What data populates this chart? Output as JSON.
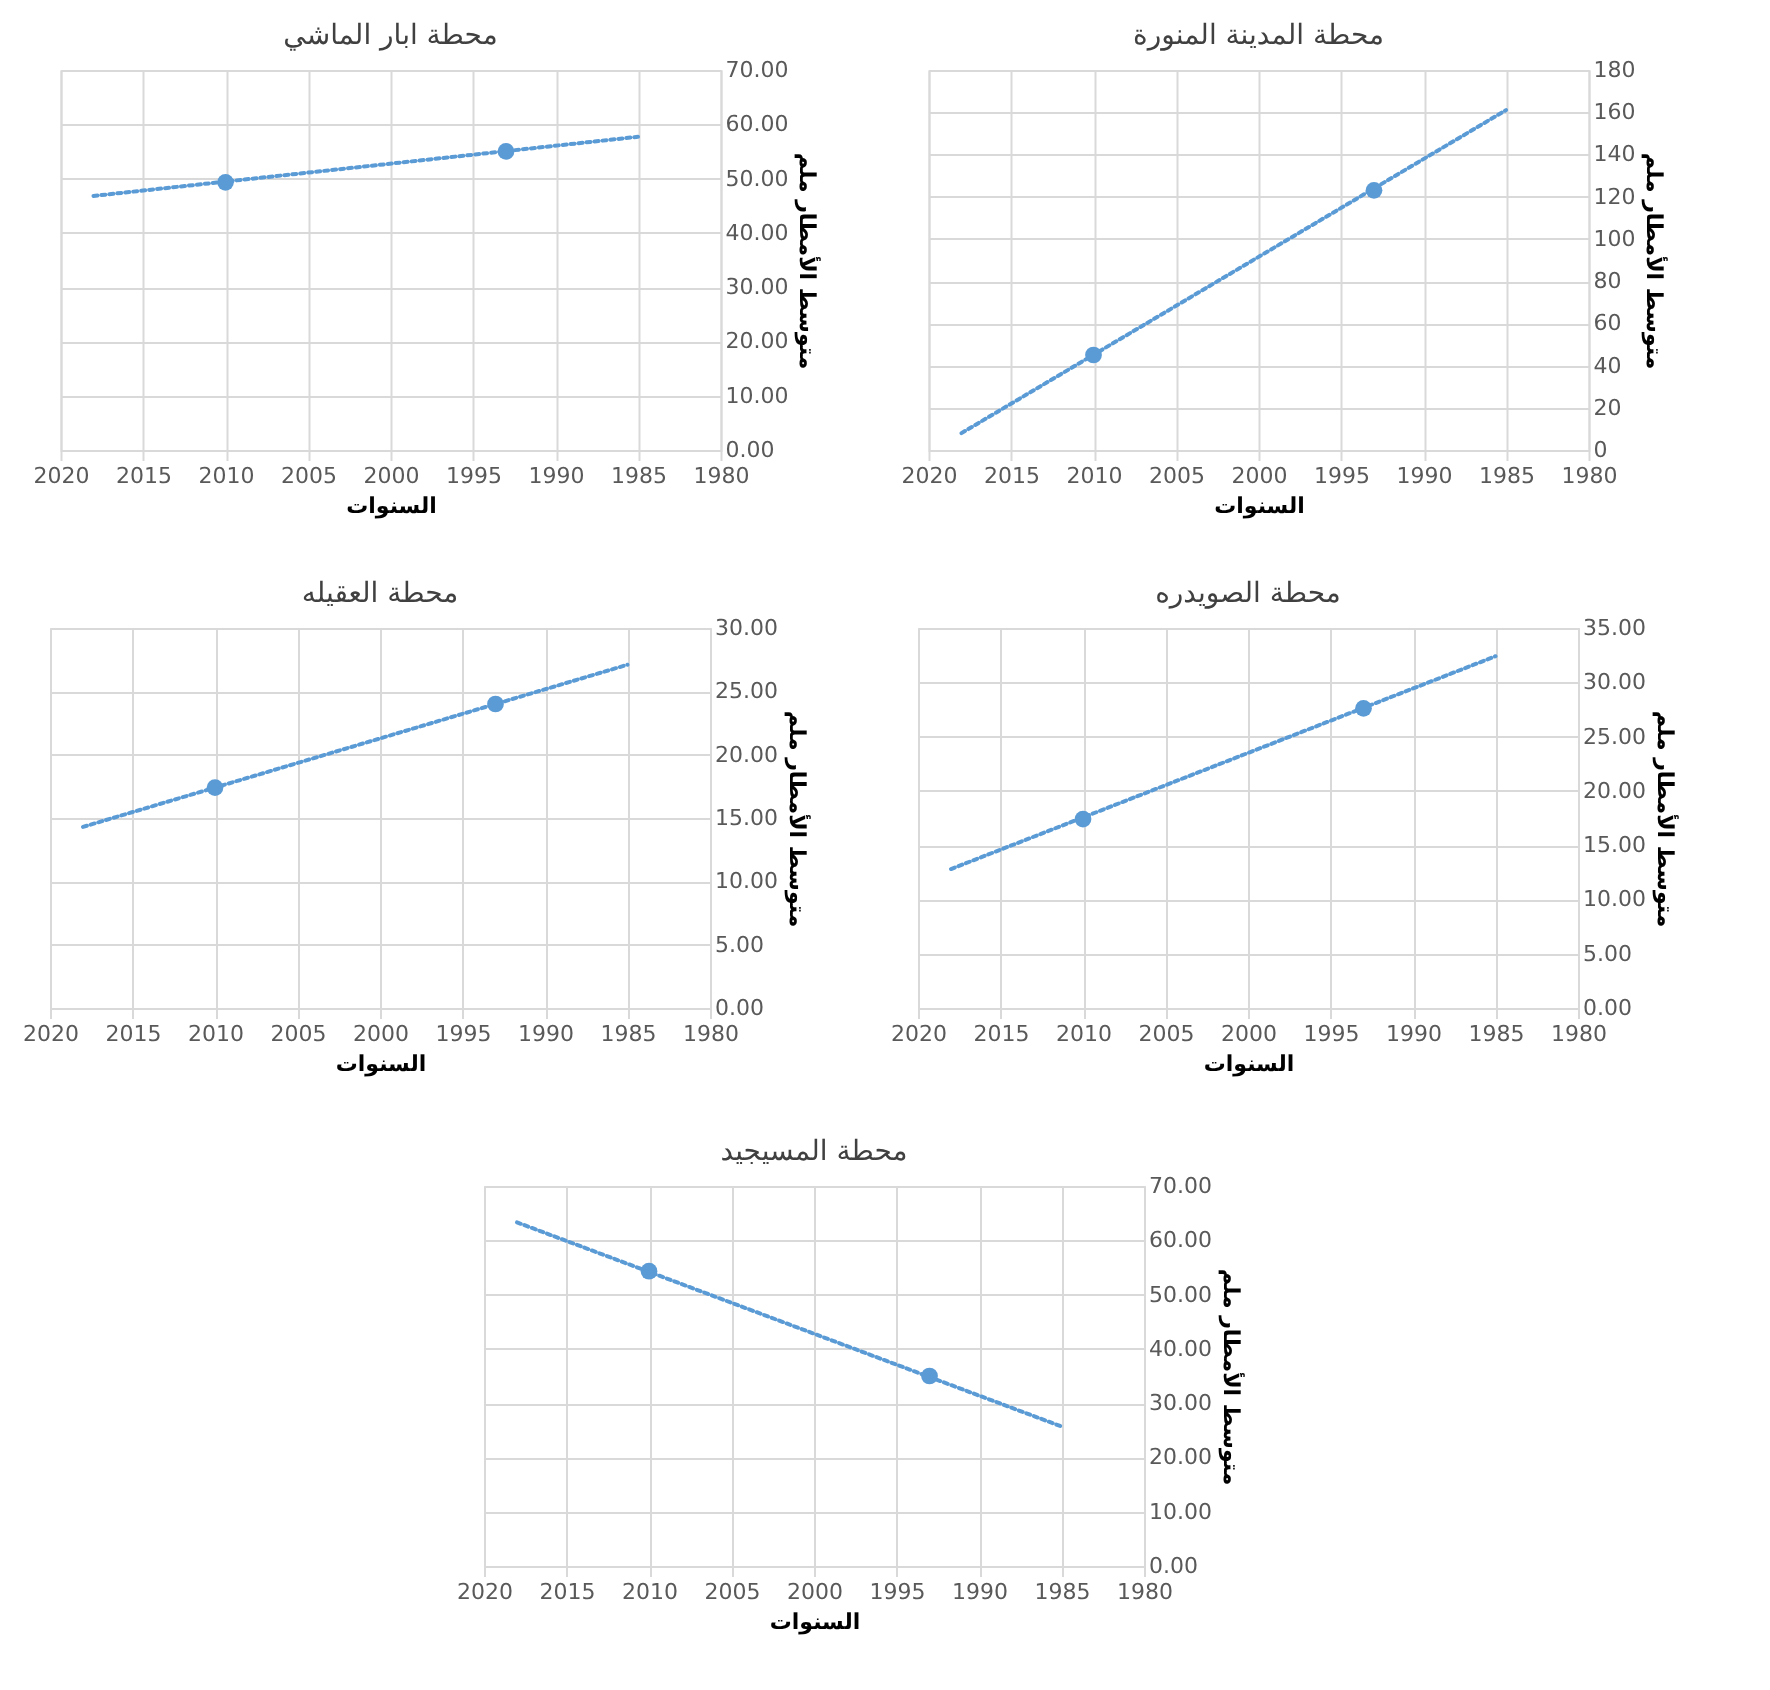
{
  "chart_data": [
    {
      "type": "scatter",
      "title": "محطة ابار الماشي",
      "xlabel": "السنوات",
      "ylabel": "متوسط الأمطار ملم",
      "xlim": [
        2020,
        1980
      ],
      "xticks": [
        2020,
        2015,
        2010,
        2005,
        2000,
        1995,
        1990,
        1985,
        1980
      ],
      "ylim": [
        0,
        70
      ],
      "yticks": [
        {
          "value": 0,
          "label": "0.00"
        },
        {
          "value": 10,
          "label": "10.00"
        },
        {
          "value": 20,
          "label": "20.00"
        },
        {
          "value": 30,
          "label": "30.00"
        },
        {
          "value": 40,
          "label": "40.00"
        },
        {
          "value": 50,
          "label": "50.00"
        },
        {
          "value": 60,
          "label": "60.00"
        },
        {
          "value": 70,
          "label": "70.00"
        }
      ],
      "grid": true,
      "legend": false,
      "series": [
        {
          "type": "line",
          "line_style": "dotted",
          "color": "#5b9bd5",
          "x": [
            2018,
            1985
          ],
          "values": [
            46.8,
            57.7
          ]
        },
        {
          "type": "scatter",
          "marker": "circle",
          "color": "#5b9bd5",
          "x": [
            2010,
            1993
          ],
          "values": [
            49.3,
            55
          ]
        }
      ]
    },
    {
      "type": "scatter",
      "title": "محطة المدينة المنورة",
      "xlabel": "السنوات",
      "ylabel": "متوسط الأمطار ملم",
      "xlim": [
        2020,
        1980
      ],
      "xticks": [
        2020,
        2015,
        2010,
        2005,
        2000,
        1995,
        1990,
        1985,
        1980
      ],
      "ylim": [
        0,
        180
      ],
      "yticks": [
        0,
        20,
        40,
        60,
        80,
        100,
        120,
        140,
        160,
        180
      ],
      "grid": true,
      "legend": false,
      "series": [
        {
          "type": "line",
          "line_style": "dotted",
          "color": "#5b9bd5",
          "x": [
            2018,
            1985
          ],
          "values": [
            8,
            161
          ]
        },
        {
          "type": "scatter",
          "marker": "circle",
          "color": "#5b9bd5",
          "x": [
            2010,
            1993
          ],
          "values": [
            45,
            123
          ]
        }
      ]
    },
    {
      "type": "scatter",
      "title": "محطة العقيله",
      "xlabel": "السنوات",
      "ylabel": "متوسط الأمطار ملم",
      "xlim": [
        2020,
        1980
      ],
      "xticks": [
        2020,
        2015,
        2010,
        2005,
        2000,
        1995,
        1990,
        1985,
        1980
      ],
      "ylim": [
        0,
        30
      ],
      "yticks": [
        {
          "value": 0,
          "label": "0.00"
        },
        {
          "value": 5,
          "label": "5.00"
        },
        {
          "value": 10,
          "label": "10.00"
        },
        {
          "value": 15,
          "label": "15.00"
        },
        {
          "value": 20,
          "label": "20.00"
        },
        {
          "value": 25,
          "label": "25.00"
        },
        {
          "value": 30,
          "label": "30.00"
        }
      ],
      "grid": true,
      "legend": false,
      "series": [
        {
          "type": "line",
          "line_style": "dotted",
          "color": "#5b9bd5",
          "x": [
            2018,
            1985
          ],
          "values": [
            14.3,
            27.1
          ]
        },
        {
          "type": "scatter",
          "marker": "circle",
          "color": "#5b9bd5",
          "x": [
            2010,
            1993
          ],
          "values": [
            17.4,
            24
          ]
        }
      ]
    },
    {
      "type": "scatter",
      "title": "محطة الصويدره",
      "xlabel": "السنوات",
      "ylabel": "متوسط الأمطار ملم",
      "xlim": [
        2020,
        1980
      ],
      "xticks": [
        2020,
        2015,
        2010,
        2005,
        2000,
        1995,
        1990,
        1985,
        1980
      ],
      "ylim": [
        0,
        35
      ],
      "yticks": [
        {
          "value": 0,
          "label": "0.00"
        },
        {
          "value": 5,
          "label": "5.00"
        },
        {
          "value": 10,
          "label": "10.00"
        },
        {
          "value": 15,
          "label": "15.00"
        },
        {
          "value": 20,
          "label": "20.00"
        },
        {
          "value": 25,
          "label": "25.00"
        },
        {
          "value": 30,
          "label": "30.00"
        },
        {
          "value": 35,
          "label": "35.00"
        }
      ],
      "grid": true,
      "legend": false,
      "series": [
        {
          "type": "line",
          "line_style": "dotted",
          "color": "#5b9bd5",
          "x": [
            2018,
            1985
          ],
          "values": [
            12.8,
            32.4
          ]
        },
        {
          "type": "scatter",
          "marker": "circle",
          "color": "#5b9bd5",
          "x": [
            2010,
            1993
          ],
          "values": [
            17.4,
            27.6
          ]
        }
      ]
    },
    {
      "type": "scatter",
      "title": "محطة المسيجيد",
      "xlabel": "السنوات",
      "ylabel": "متوسط الأمطار ملم",
      "xlim": [
        2020,
        1980
      ],
      "xticks": [
        2020,
        2015,
        2010,
        2005,
        2000,
        1995,
        1990,
        1985,
        1980
      ],
      "ylim": [
        0,
        70
      ],
      "yticks": [
        {
          "value": 0,
          "label": "0.00"
        },
        {
          "value": 10,
          "label": "10.00"
        },
        {
          "value": 20,
          "label": "20.00"
        },
        {
          "value": 30,
          "label": "30.00"
        },
        {
          "value": 40,
          "label": "40.00"
        },
        {
          "value": 50,
          "label": "50.00"
        },
        {
          "value": 60,
          "label": "60.00"
        },
        {
          "value": 70,
          "label": "70.00"
        }
      ],
      "grid": true,
      "legend": false,
      "series": [
        {
          "type": "line",
          "line_style": "dotted",
          "color": "#5b9bd5",
          "x": [
            2018,
            1985
          ],
          "values": [
            63.3,
            25.7
          ]
        },
        {
          "type": "scatter",
          "marker": "circle",
          "color": "#5b9bd5",
          "x": [
            2010,
            1993
          ],
          "values": [
            54.3,
            35
          ]
        }
      ]
    }
  ]
}
